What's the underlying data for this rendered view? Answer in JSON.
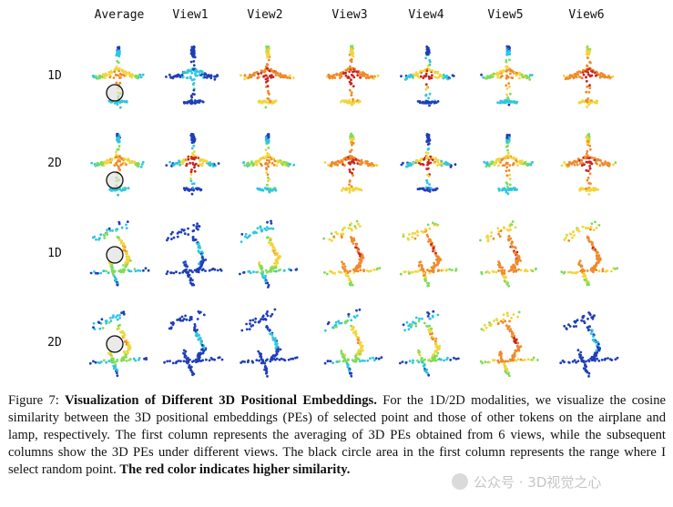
{
  "figure": {
    "columns": [
      "Average",
      "View1",
      "View2",
      "View3",
      "View4",
      "View5",
      "View6"
    ],
    "rows": [
      "1D",
      "2D",
      "1D",
      "2D"
    ],
    "row_objects": [
      "airplane",
      "airplane",
      "lamp",
      "lamp"
    ],
    "cells": [
      [
        "circle-mixed",
        "blue",
        "hot",
        "hot",
        "mixed-blue",
        "mixed",
        "hot"
      ],
      [
        "circle-mixed",
        "mixed-blue",
        "mixed",
        "hot",
        "mixed-blue",
        "mixed",
        "hot"
      ],
      [
        "circle-mixed",
        "blue",
        "mixed",
        "hot",
        "hot",
        "hot",
        "hot"
      ],
      [
        "circle-mixed",
        "blue",
        "blue",
        "mixed",
        "mixed",
        "hot",
        "blue"
      ]
    ]
  },
  "caption": {
    "label": "Figure 7: ",
    "title": "Visualization of Different 3D Positional Embeddings.",
    "body": " For the 1D/2D modalities, we visualize the cosine similarity between the 3D positional embeddings (PEs) of selected point and those of other tokens on the airplane and lamp, respectively. The first column represents the averaging of 3D PEs obtained from 6 views, while the subsequent columns show the 3D PEs under different views. The black circle area in the first column represents the range where I select random point. ",
    "emphasis": "The red color indicates higher similarity."
  },
  "watermark": {
    "text": "公众号 · 3D视觉之心"
  },
  "colors": {
    "blue": "#1f3fb8",
    "cyan": "#2fc6e0",
    "green": "#7fdc5a",
    "yellow": "#f2d53c",
    "orange": "#f08a2a",
    "red": "#c9241e"
  }
}
